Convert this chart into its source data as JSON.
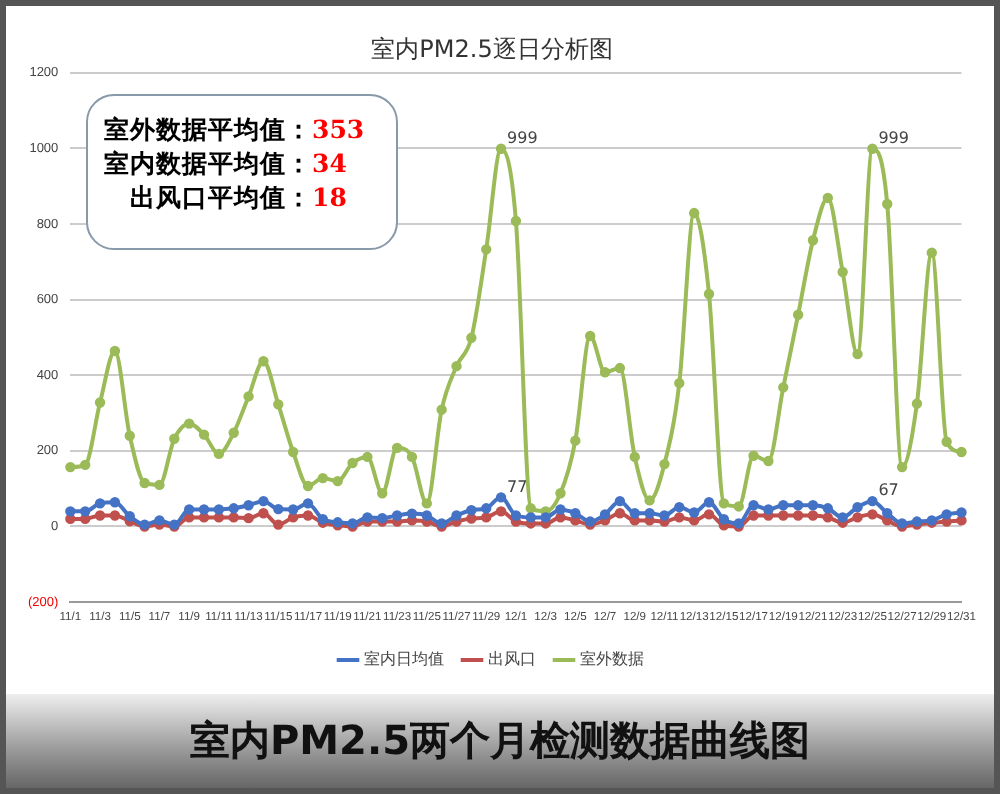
{
  "chart_data": {
    "type": "line",
    "title": "室内PM2.5逐日分析图",
    "categories": [
      "11/1",
      null,
      "11/3",
      null,
      "11/5",
      null,
      "11/7",
      null,
      "11/9",
      null,
      "11/11",
      null,
      "11/13",
      null,
      "11/15",
      null,
      "11/17",
      null,
      "11/19",
      null,
      "11/21",
      null,
      "11/23",
      null,
      "11/25",
      null,
      "11/27",
      null,
      "11/29",
      null,
      "12/1",
      null,
      "12/3",
      null,
      "12/5",
      null,
      "12/7",
      null,
      "12/9",
      null,
      "12/11",
      null,
      "12/13",
      null,
      "12/15",
      null,
      "12/17",
      null,
      "12/19",
      null,
      "12/21",
      null,
      "12/23",
      null,
      "12/25",
      null,
      "12/27",
      null,
      "12/29",
      null,
      "12/31"
    ],
    "series": [
      {
        "name": "室内日均值",
        "color": "#4472c4",
        "values": [
          40,
          40,
          61,
          64,
          27,
          5,
          16,
          5,
          45,
          45,
          45,
          48,
          56,
          67,
          46,
          45,
          61,
          19,
          11,
          8,
          24,
          22,
          29,
          34,
          29,
          8,
          29,
          43,
          48,
          77,
          29,
          24,
          24,
          45,
          35,
          13,
          32,
          67,
          35,
          35,
          29,
          51,
          37,
          64,
          19,
          8,
          56,
          45,
          56,
          56,
          56,
          48,
          24,
          51,
          67,
          35,
          8,
          13,
          16,
          32,
          37
        ],
        "value_labels": [
          null,
          null,
          null,
          null,
          null,
          null,
          null,
          null,
          null,
          null,
          null,
          null,
          null,
          null,
          null,
          null,
          null,
          null,
          null,
          null,
          null,
          null,
          null,
          null,
          null,
          null,
          null,
          null,
          null,
          "77",
          null,
          null,
          null,
          null,
          null,
          null,
          null,
          null,
          null,
          null,
          null,
          null,
          null,
          null,
          null,
          null,
          null,
          null,
          null,
          null,
          null,
          null,
          null,
          null,
          "67",
          null,
          null,
          null,
          null,
          null,
          null
        ]
      },
      {
        "name": "出风口",
        "color": "#c0504d",
        "values": [
          20,
          20,
          29,
          29,
          14,
          0,
          5,
          0,
          24,
          24,
          24,
          24,
          22,
          35,
          5,
          24,
          29,
          10,
          3,
          0,
          13,
          13,
          13,
          16,
          13,
          0,
          13,
          21,
          24,
          40,
          13,
          8,
          8,
          24,
          16,
          5,
          16,
          35,
          16,
          16,
          13,
          24,
          16,
          32,
          3,
          0,
          29,
          29,
          29,
          29,
          29,
          24,
          10,
          24,
          32,
          16,
          0,
          5,
          10,
          13,
          16
        ]
      },
      {
        "name": "室外数据",
        "color": "#9bbb59",
        "values": [
          157,
          163,
          328,
          464,
          240,
          115,
          110,
          232,
          272,
          243,
          192,
          248,
          344,
          437,
          323,
          197,
          107,
          128,
          120,
          168,
          184,
          88,
          208,
          184,
          61,
          309,
          424,
          499,
          733,
          999,
          808,
          48,
          40,
          88,
          227,
          504,
          408,
          419,
          184,
          69,
          165,
          379,
          829,
          615,
          61,
          53,
          187,
          173,
          368,
          560,
          757,
          869,
          673,
          456,
          999,
          853,
          157,
          325,
          724,
          224,
          197
        ],
        "value_labels": [
          null,
          null,
          null,
          null,
          null,
          null,
          null,
          null,
          null,
          null,
          null,
          null,
          null,
          null,
          null,
          null,
          null,
          null,
          null,
          null,
          null,
          null,
          null,
          null,
          null,
          null,
          null,
          null,
          null,
          "999",
          null,
          null,
          null,
          null,
          null,
          null,
          null,
          null,
          null,
          null,
          null,
          null,
          null,
          null,
          null,
          null,
          null,
          null,
          null,
          null,
          null,
          null,
          null,
          null,
          "999",
          null,
          null,
          null,
          null,
          null,
          null
        ]
      }
    ],
    "ylim": [
      -200,
      1200
    ],
    "yticks": [
      {
        "value": -200,
        "label": "(200)"
      },
      0,
      200,
      400,
      600,
      800,
      1000,
      1200
    ],
    "grid": "y",
    "legend": "bottom",
    "marker": "circle",
    "line_style": "solid",
    "annotations": [
      "室外数据平均值：353",
      "室内数据平均值：34",
      "出风口平均值：18",
      "室内PM2.5两个月检测数据曲线图"
    ]
  }
}
